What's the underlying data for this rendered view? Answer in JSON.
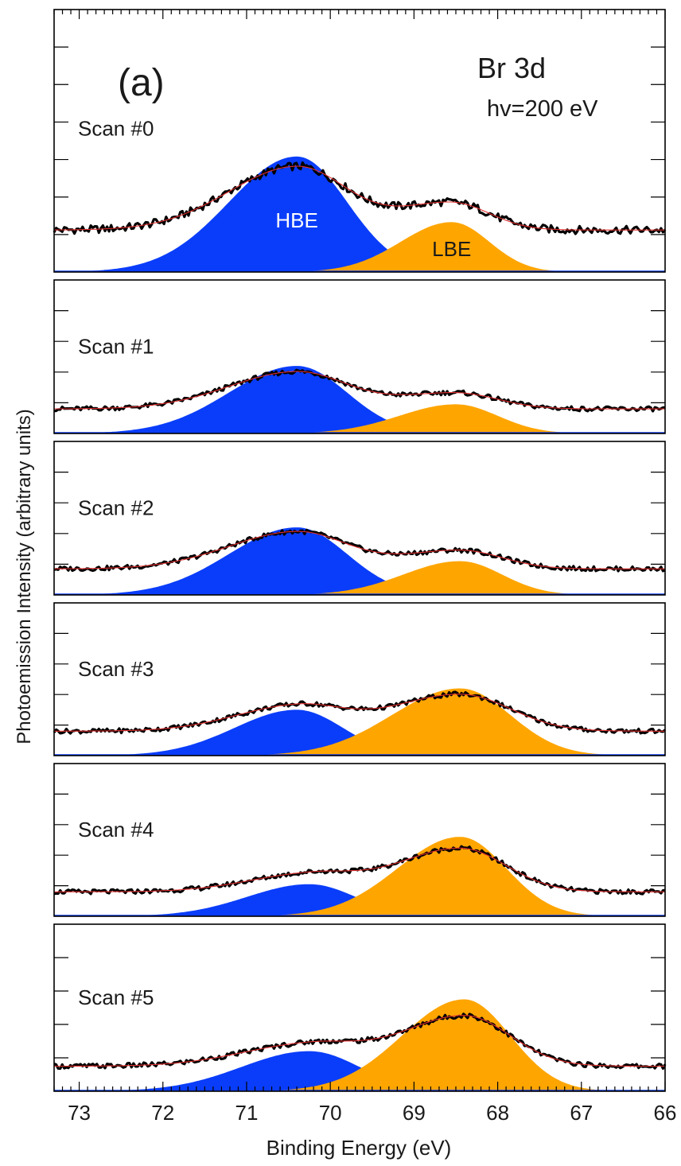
{
  "chart_data": {
    "type": "area",
    "panel_label": "(a)",
    "title": "Br 3d",
    "subtitle": "hv=200 eV",
    "xlabel": "Binding Energy (eV)",
    "ylabel": "Photoemission Intensity (arbitrary units)",
    "xlim": [
      73.3,
      66.0
    ],
    "x_reversed": true,
    "x_ticks": [
      73,
      72,
      71,
      70,
      69,
      68,
      67,
      66
    ],
    "y_tick_labels": false,
    "components": [
      "HBE",
      "LBE"
    ],
    "colors": {
      "HBE": "#0a3dfa",
      "LBE": "#ffa500",
      "fit": "#e23030",
      "data": "#000000"
    },
    "scans": [
      {
        "name": "Scan #0",
        "background": 0.16,
        "hbe": {
          "center": 70.4,
          "height": 0.44,
          "width": 0.6
        },
        "lbe": {
          "center": 68.55,
          "height": 0.19,
          "width": 0.45
        }
      },
      {
        "name": "Scan #1",
        "background": 0.16,
        "hbe": {
          "center": 70.4,
          "height": 0.44,
          "width": 0.6
        },
        "lbe": {
          "center": 68.5,
          "height": 0.19,
          "width": 0.5
        }
      },
      {
        "name": "Scan #2",
        "background": 0.17,
        "hbe": {
          "center": 70.4,
          "height": 0.44,
          "width": 0.6
        },
        "lbe": {
          "center": 68.45,
          "height": 0.22,
          "width": 0.5
        }
      },
      {
        "name": "Scan #3",
        "background": 0.16,
        "hbe": {
          "center": 70.4,
          "height": 0.3,
          "width": 0.55
        },
        "lbe": {
          "center": 68.45,
          "height": 0.44,
          "width": 0.6
        }
      },
      {
        "name": "Scan #4",
        "background": 0.16,
        "hbe": {
          "center": 70.25,
          "height": 0.21,
          "width": 0.55
        },
        "lbe": {
          "center": 68.45,
          "height": 0.52,
          "width": 0.55
        }
      },
      {
        "name": "Scan #5",
        "background": 0.15,
        "hbe": {
          "center": 70.25,
          "height": 0.24,
          "width": 0.6
        },
        "lbe": {
          "center": 68.4,
          "height": 0.55,
          "width": 0.55
        }
      }
    ]
  }
}
